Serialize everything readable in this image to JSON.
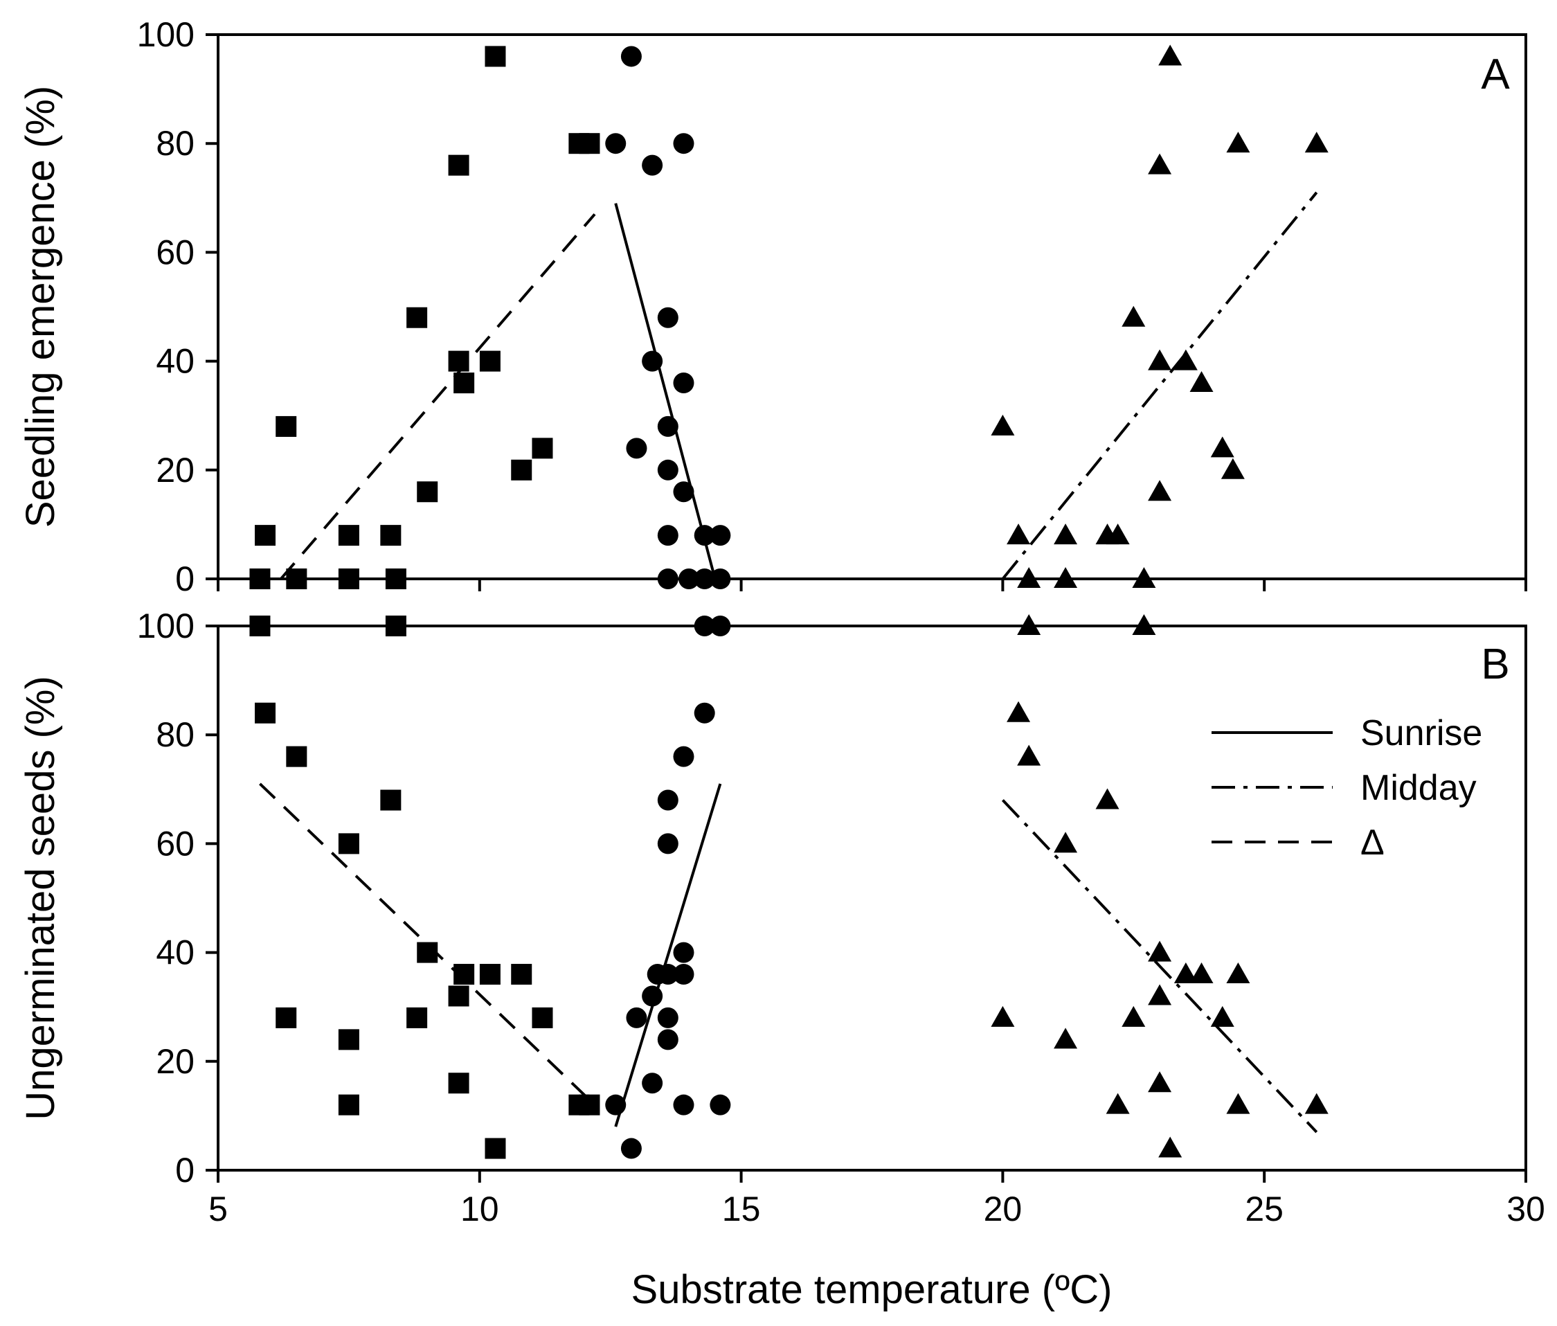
{
  "chart_data": {
    "type": "scatter",
    "xlabel": "Substrate temperature (ºC)",
    "xlim": [
      5,
      30
    ],
    "xticks": [
      "5",
      "10",
      "15",
      "20",
      "25",
      "30"
    ],
    "legend_position": "top-right of panel B",
    "legend": [
      {
        "name": "Sunrise",
        "style": "solid"
      },
      {
        "name": "Midday",
        "style": "dashdot"
      },
      {
        "name": "Δ",
        "style": "dashed"
      }
    ],
    "panels": [
      {
        "id": "A",
        "label": "A",
        "ylabel": "Seedling emergence (%)",
        "ylim": [
          0,
          100
        ],
        "yticks": [
          "0",
          "20",
          "40",
          "60",
          "80",
          "100"
        ],
        "series": [
          {
            "name": "Δ",
            "marker": "square",
            "points": [
              [
                5.8,
                0
              ],
              [
                5.9,
                8
              ],
              [
                6.3,
                28
              ],
              [
                6.5,
                0
              ],
              [
                7.5,
                8
              ],
              [
                7.5,
                0
              ],
              [
                8.3,
                8
              ],
              [
                8.4,
                0
              ],
              [
                8.8,
                48
              ],
              [
                9.0,
                16
              ],
              [
                9.6,
                76
              ],
              [
                9.6,
                40
              ],
              [
                9.7,
                36
              ],
              [
                10.2,
                40
              ],
              [
                10.3,
                96
              ],
              [
                10.8,
                20
              ],
              [
                11.2,
                24
              ],
              [
                11.9,
                80
              ],
              [
                12.1,
                80
              ]
            ],
            "fit": [
              [
                6.2,
                0
              ],
              [
                12.2,
                67
              ]
            ]
          },
          {
            "name": "Sunrise",
            "marker": "circle",
            "points": [
              [
                12.6,
                80
              ],
              [
                12.9,
                96
              ],
              [
                13.0,
                24
              ],
              [
                13.3,
                76
              ],
              [
                13.3,
                40
              ],
              [
                13.6,
                48
              ],
              [
                13.6,
                28
              ],
              [
                13.6,
                20
              ],
              [
                13.6,
                8
              ],
              [
                13.6,
                0
              ],
              [
                13.9,
                80
              ],
              [
                13.9,
                36
              ],
              [
                13.9,
                16
              ],
              [
                14.0,
                0
              ],
              [
                14.3,
                8
              ],
              [
                14.3,
                0
              ],
              [
                14.6,
                8
              ],
              [
                14.6,
                0
              ]
            ],
            "fit": [
              [
                12.6,
                69
              ],
              [
                14.5,
                0
              ]
            ]
          },
          {
            "name": "Midday",
            "marker": "triangle",
            "points": [
              [
                20.0,
                28
              ],
              [
                20.3,
                8
              ],
              [
                20.5,
                0
              ],
              [
                21.2,
                8
              ],
              [
                21.2,
                0
              ],
              [
                22.0,
                8
              ],
              [
                22.2,
                8
              ],
              [
                22.5,
                48
              ],
              [
                22.7,
                0
              ],
              [
                23.0,
                76
              ],
              [
                23.0,
                40
              ],
              [
                23.0,
                16
              ],
              [
                23.2,
                96
              ],
              [
                23.5,
                40
              ],
              [
                23.8,
                36
              ],
              [
                24.2,
                24
              ],
              [
                24.4,
                20
              ],
              [
                24.5,
                80
              ],
              [
                26.0,
                80
              ]
            ],
            "fit": [
              [
                20.0,
                0
              ],
              [
                26.0,
                71
              ]
            ]
          }
        ]
      },
      {
        "id": "B",
        "label": "B",
        "ylabel": "Ungerminated seeds (%)",
        "ylim": [
          0,
          100
        ],
        "yticks": [
          "0",
          "20",
          "40",
          "60",
          "80",
          "100"
        ],
        "series": [
          {
            "name": "Δ",
            "marker": "square",
            "points": [
              [
                5.8,
                100
              ],
              [
                5.9,
                84
              ],
              [
                6.3,
                28
              ],
              [
                6.5,
                76
              ],
              [
                7.5,
                60
              ],
              [
                7.5,
                24
              ],
              [
                7.5,
                12
              ],
              [
                8.3,
                68
              ],
              [
                8.4,
                100
              ],
              [
                8.8,
                28
              ],
              [
                9.0,
                40
              ],
              [
                9.6,
                32
              ],
              [
                9.6,
                16
              ],
              [
                9.7,
                36
              ],
              [
                10.2,
                36
              ],
              [
                10.3,
                4
              ],
              [
                10.8,
                36
              ],
              [
                11.2,
                28
              ],
              [
                11.9,
                12
              ],
              [
                12.1,
                12
              ]
            ],
            "fit": [
              [
                5.8,
                71
              ],
              [
                12.2,
                12
              ]
            ]
          },
          {
            "name": "Sunrise",
            "marker": "circle",
            "points": [
              [
                12.6,
                12
              ],
              [
                13.0,
                28
              ],
              [
                12.9,
                4
              ],
              [
                13.3,
                16
              ],
              [
                13.3,
                32
              ],
              [
                13.4,
                36
              ],
              [
                13.6,
                68
              ],
              [
                13.6,
                60
              ],
              [
                13.6,
                36
              ],
              [
                13.6,
                28
              ],
              [
                13.6,
                24
              ],
              [
                13.9,
                76
              ],
              [
                13.9,
                40
              ],
              [
                13.9,
                36
              ],
              [
                13.9,
                12
              ],
              [
                14.3,
                84
              ],
              [
                14.3,
                100
              ],
              [
                14.6,
                100
              ],
              [
                14.6,
                12
              ]
            ],
            "fit": [
              [
                12.6,
                8
              ],
              [
                14.6,
                71
              ]
            ]
          },
          {
            "name": "Midday",
            "marker": "triangle",
            "points": [
              [
                20.0,
                28
              ],
              [
                20.3,
                84
              ],
              [
                20.5,
                76
              ],
              [
                20.5,
                100
              ],
              [
                21.2,
                60
              ],
              [
                21.2,
                24
              ],
              [
                22.0,
                68
              ],
              [
                22.2,
                12
              ],
              [
                22.5,
                28
              ],
              [
                22.7,
                100
              ],
              [
                23.0,
                40
              ],
              [
                23.0,
                32
              ],
              [
                23.0,
                16
              ],
              [
                23.2,
                4
              ],
              [
                23.5,
                36
              ],
              [
                23.8,
                36
              ],
              [
                24.2,
                28
              ],
              [
                24.5,
                36
              ],
              [
                24.5,
                12
              ],
              [
                26.0,
                12
              ]
            ],
            "fit": [
              [
                20.0,
                68
              ],
              [
                26.0,
                7
              ]
            ]
          }
        ]
      }
    ]
  }
}
